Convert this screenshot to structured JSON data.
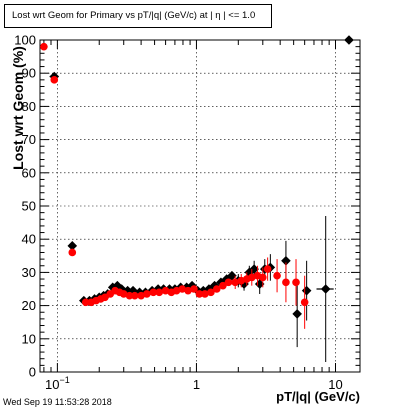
{
  "title": "Lost wrt Geom for Primary vs pT/|q| (GeV/c) at |   η | <= 1.0",
  "timestamp": "Wed Sep 19 11:53:28 2018",
  "chart_data": {
    "type": "scatter",
    "xlabel": "pT/|q| (GeV/c)",
    "ylabel": "Lost wrt Geom (%)",
    "xscale": "log",
    "xlim": [
      0.075,
      15
    ],
    "ylim": [
      0,
      100
    ],
    "xticks": [
      {
        "value": 0.1,
        "label": "10",
        "exponent": "−1"
      },
      {
        "value": 1,
        "label": "1"
      },
      {
        "value": 10,
        "label": "10"
      }
    ],
    "yticks": [
      0,
      10,
      20,
      30,
      40,
      50,
      60,
      70,
      80,
      90,
      100
    ],
    "grid": true,
    "series": [
      {
        "color": "#000000",
        "marker": "diamond",
        "points": [
          {
            "x": 0.095,
            "y": 89,
            "xerr": 0.007,
            "yerr": 0
          },
          {
            "x": 0.128,
            "y": 38,
            "xerr": 0.006,
            "yerr": 0
          },
          {
            "x": 0.155,
            "y": 21.5
          },
          {
            "x": 0.17,
            "y": 21.5
          },
          {
            "x": 0.185,
            "y": 22
          },
          {
            "x": 0.2,
            "y": 22.5
          },
          {
            "x": 0.215,
            "y": 23
          },
          {
            "x": 0.23,
            "y": 23.5
          },
          {
            "x": 0.25,
            "y": 25.5
          },
          {
            "x": 0.27,
            "y": 26
          },
          {
            "x": 0.29,
            "y": 25
          },
          {
            "x": 0.32,
            "y": 24.5
          },
          {
            "x": 0.35,
            "y": 24.5
          },
          {
            "x": 0.39,
            "y": 24
          },
          {
            "x": 0.43,
            "y": 24
          },
          {
            "x": 0.48,
            "y": 24.5
          },
          {
            "x": 0.53,
            "y": 25
          },
          {
            "x": 0.58,
            "y": 25
          },
          {
            "x": 0.64,
            "y": 25
          },
          {
            "x": 0.7,
            "y": 25
          },
          {
            "x": 0.77,
            "y": 25.5
          },
          {
            "x": 0.85,
            "y": 25.5
          },
          {
            "x": 0.93,
            "y": 26
          },
          {
            "x": 1.02,
            "y": 24.5
          },
          {
            "x": 1.12,
            "y": 24.5
          },
          {
            "x": 1.23,
            "y": 25
          },
          {
            "x": 1.35,
            "y": 26
          },
          {
            "x": 1.5,
            "y": 27
          },
          {
            "x": 1.65,
            "y": 28
          },
          {
            "x": 1.8,
            "y": 29
          },
          {
            "x": 2.0,
            "y": 27.5,
            "yerr": 2
          },
          {
            "x": 2.2,
            "y": 26.5,
            "yerr": 2
          },
          {
            "x": 2.4,
            "y": 30,
            "yerr": 2
          },
          {
            "x": 2.6,
            "y": 31,
            "yerr": 2.5
          },
          {
            "x": 2.85,
            "y": 26.5,
            "yerr": 3
          },
          {
            "x": 3.1,
            "y": 31,
            "yerr": 3
          },
          {
            "x": 3.4,
            "y": 31.5,
            "yerr": 4
          },
          {
            "x": 4.4,
            "y": 33.5,
            "yerr": 6
          },
          {
            "x": 5.3,
            "y": 17.5,
            "yerr": 10
          },
          {
            "x": 6.2,
            "y": 24.5,
            "yerr": 9
          },
          {
            "x": 8.5,
            "y": 25,
            "xerr": 1.2,
            "yerr": 22
          },
          {
            "x": 12.5,
            "y": 100
          }
        ]
      },
      {
        "color": "#ff0000",
        "marker": "circle",
        "points": [
          {
            "x": 0.08,
            "y": 98
          },
          {
            "x": 0.095,
            "y": 88
          },
          {
            "x": 0.128,
            "y": 36
          },
          {
            "x": 0.16,
            "y": 21
          },
          {
            "x": 0.175,
            "y": 21
          },
          {
            "x": 0.19,
            "y": 21.5
          },
          {
            "x": 0.205,
            "y": 22
          },
          {
            "x": 0.22,
            "y": 22.5
          },
          {
            "x": 0.24,
            "y": 23.5
          },
          {
            "x": 0.26,
            "y": 24.5
          },
          {
            "x": 0.28,
            "y": 24
          },
          {
            "x": 0.3,
            "y": 23.5
          },
          {
            "x": 0.33,
            "y": 23
          },
          {
            "x": 0.36,
            "y": 23
          },
          {
            "x": 0.4,
            "y": 23
          },
          {
            "x": 0.44,
            "y": 23.5
          },
          {
            "x": 0.49,
            "y": 24
          },
          {
            "x": 0.54,
            "y": 24
          },
          {
            "x": 0.6,
            "y": 24.5
          },
          {
            "x": 0.66,
            "y": 24
          },
          {
            "x": 0.72,
            "y": 24.5
          },
          {
            "x": 0.79,
            "y": 25
          },
          {
            "x": 0.87,
            "y": 24.5
          },
          {
            "x": 0.96,
            "y": 25
          },
          {
            "x": 1.05,
            "y": 23.5
          },
          {
            "x": 1.15,
            "y": 23.5
          },
          {
            "x": 1.27,
            "y": 24
          },
          {
            "x": 1.4,
            "y": 25
          },
          {
            "x": 1.55,
            "y": 26
          },
          {
            "x": 1.7,
            "y": 27
          },
          {
            "x": 1.9,
            "y": 27,
            "yerr": 2
          },
          {
            "x": 2.1,
            "y": 27.5,
            "yerr": 2
          },
          {
            "x": 2.3,
            "y": 28,
            "yerr": 2
          },
          {
            "x": 2.5,
            "y": 28.5,
            "yerr": 2.5
          },
          {
            "x": 2.75,
            "y": 29,
            "yerr": 3
          },
          {
            "x": 3.0,
            "y": 28.5,
            "yerr": 3
          },
          {
            "x": 3.25,
            "y": 31,
            "yerr": 3.5
          },
          {
            "x": 3.8,
            "y": 29,
            "yerr": 5
          },
          {
            "x": 4.4,
            "y": 27,
            "yerr": 6
          },
          {
            "x": 5.2,
            "y": 27,
            "yerr": 7
          },
          {
            "x": 6.0,
            "y": 21,
            "yerr": 8
          }
        ]
      }
    ]
  }
}
